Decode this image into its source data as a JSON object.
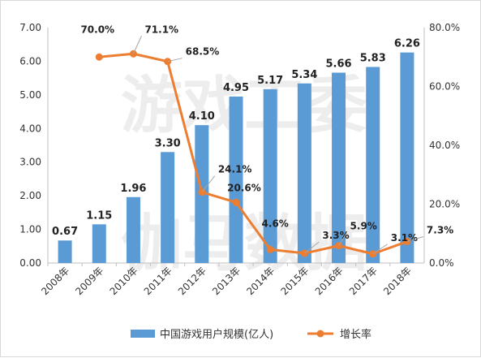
{
  "chart_data": {
    "type": "bar+line",
    "categories": [
      "2008年",
      "2009年",
      "2010年",
      "2011年",
      "2012年",
      "2013年",
      "2014年",
      "2015年",
      "2016年",
      "2017年",
      "2018年"
    ],
    "series": [
      {
        "name": "中国游戏用户规模(亿人)",
        "type": "bar",
        "axis": "left",
        "color": "#5b9bd5",
        "values": [
          0.67,
          1.15,
          1.96,
          3.3,
          4.1,
          4.95,
          5.17,
          5.34,
          5.66,
          5.83,
          6.26
        ],
        "labels": [
          "0.67",
          "1.15",
          "1.96",
          "3.30",
          "4.10",
          "4.95",
          "5.17",
          "5.34",
          "5.66",
          "5.83",
          "6.26"
        ]
      },
      {
        "name": "增长率",
        "type": "line",
        "axis": "right",
        "color": "#ed7d31",
        "values": [
          null,
          70.0,
          71.1,
          68.5,
          24.1,
          20.6,
          4.6,
          3.3,
          5.9,
          3.1,
          7.3
        ],
        "labels": [
          "",
          "70.0%",
          "71.1%",
          "68.5%",
          "24.1%",
          "20.6%",
          "4.6%",
          "3.3%",
          "5.9%",
          "3.1%",
          "7.3%"
        ]
      }
    ],
    "y_left": {
      "min": 0,
      "max": 7,
      "step": 1,
      "ticks": [
        "0.00",
        "1.00",
        "2.00",
        "3.00",
        "4.00",
        "5.00",
        "6.00",
        "7.00"
      ]
    },
    "y_right": {
      "min": 0,
      "max": 80,
      "step": 20,
      "ticks": [
        "0.0%",
        "20.0%",
        "40.0%",
        "60.0%",
        "80.0%"
      ]
    },
    "grid": false,
    "legend_position": "bottom",
    "watermark": [
      "游戏工委",
      "伽马数据"
    ]
  }
}
